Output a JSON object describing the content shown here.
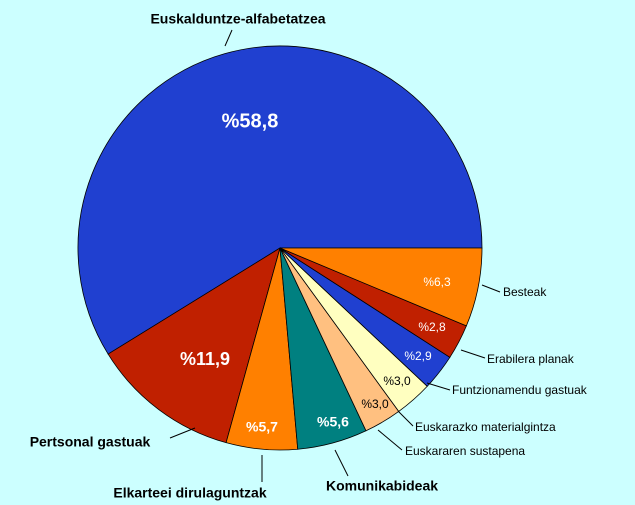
{
  "chart_data": {
    "type": "pie",
    "categories": [
      "Euskalduntze-alfabetatzea",
      "Pertsonal gastuak",
      "Elkarteei dirulaguntzak",
      "Komunikabideak",
      "Euskararen sustapena",
      "Euskarazko materialgintza",
      "Funtzionamendu gastuak",
      "Erabilera planak",
      "Besteak"
    ],
    "values": [
      58.8,
      11.9,
      5.7,
      5.6,
      3.0,
      3.0,
      2.9,
      2.8,
      6.3
    ],
    "value_labels": [
      "%58,8",
      "%11,9",
      "%5,7",
      "%5,6",
      "%3,0",
      "%3,0",
      "%2,9",
      "%2,8",
      "%6,3"
    ],
    "colors": [
      "#2040d0",
      "#c02000",
      "#ff8000",
      "#008080",
      "#ffc080",
      "#ffffc0",
      "#2040d0",
      "#c02000",
      "#ff8000"
    ]
  }
}
